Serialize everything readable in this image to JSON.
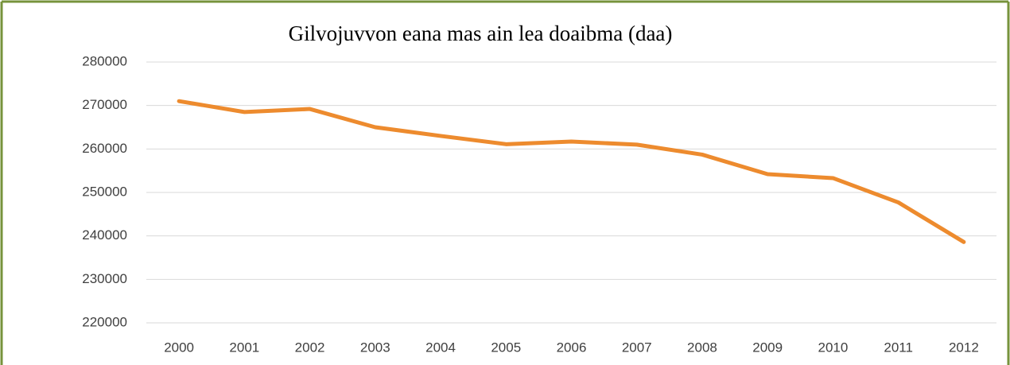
{
  "chart_data": {
    "type": "line",
    "title": "Gilvojuvvon eana mas ain lea doaibma (daa)",
    "categories": [
      "2000",
      "2001",
      "2002",
      "2003",
      "2004",
      "2005",
      "2006",
      "2007",
      "2008",
      "2009",
      "2010",
      "2011",
      "2012"
    ],
    "series": [
      {
        "name": "Gilvojuvvon eana",
        "color": "#ed8b2e",
        "values": [
          271000,
          268500,
          269200,
          265000,
          263000,
          261100,
          261700,
          261000,
          258700,
          254200,
          253300,
          247700,
          238600
        ]
      }
    ],
    "ylim": [
      220000,
      280000
    ],
    "yticks": [
      220000,
      230000,
      240000,
      250000,
      260000,
      270000,
      280000
    ],
    "grid": true
  }
}
